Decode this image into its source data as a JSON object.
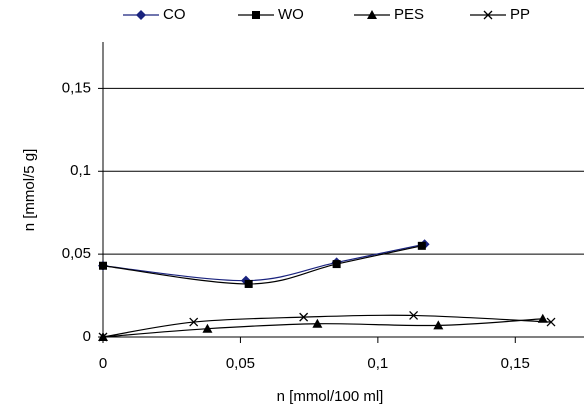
{
  "chart_data": {
    "type": "line",
    "x_label": "n [mmol/100 ml]",
    "y_label": "n [mmol/5 g]",
    "xlim": [
      0,
      0.175
    ],
    "ylim": [
      0,
      0.178
    ],
    "xticks": [
      0,
      {
        "value": 0.05,
        "label": "0,05"
      },
      {
        "value": 0.1,
        "label": "0,1"
      },
      {
        "value": 0.15,
        "label": "0,15"
      }
    ],
    "yticks": [
      0,
      {
        "value": 0.05,
        "label": "0,05"
      },
      {
        "value": 0.1,
        "label": "0,1"
      },
      {
        "value": 0.15,
        "label": "0,15"
      }
    ],
    "grid": true,
    "legend": "top",
    "series": [
      {
        "name": "CO",
        "color": "#1a237e",
        "marker": "diamond",
        "x": [
          0,
          0.052,
          0.085,
          0.117
        ],
        "values": [
          0.043,
          0.034,
          0.045,
          0.056
        ]
      },
      {
        "name": "WO",
        "color": "#000000",
        "marker": "square",
        "x": [
          0,
          0.053,
          0.085,
          0.116
        ],
        "values": [
          0.043,
          0.032,
          0.044,
          0.055
        ]
      },
      {
        "name": "PES",
        "color": "#000000",
        "marker": "triangle",
        "x": [
          0,
          0.038,
          0.078,
          0.122,
          0.16
        ],
        "values": [
          0,
          0.005,
          0.008,
          0.007,
          0.011
        ]
      },
      {
        "name": "PP",
        "color": "#000000",
        "marker": "cross",
        "x": [
          0,
          0.033,
          0.073,
          0.113,
          0.163
        ],
        "values": [
          0,
          0.009,
          0.012,
          0.013,
          0.009
        ]
      }
    ]
  }
}
